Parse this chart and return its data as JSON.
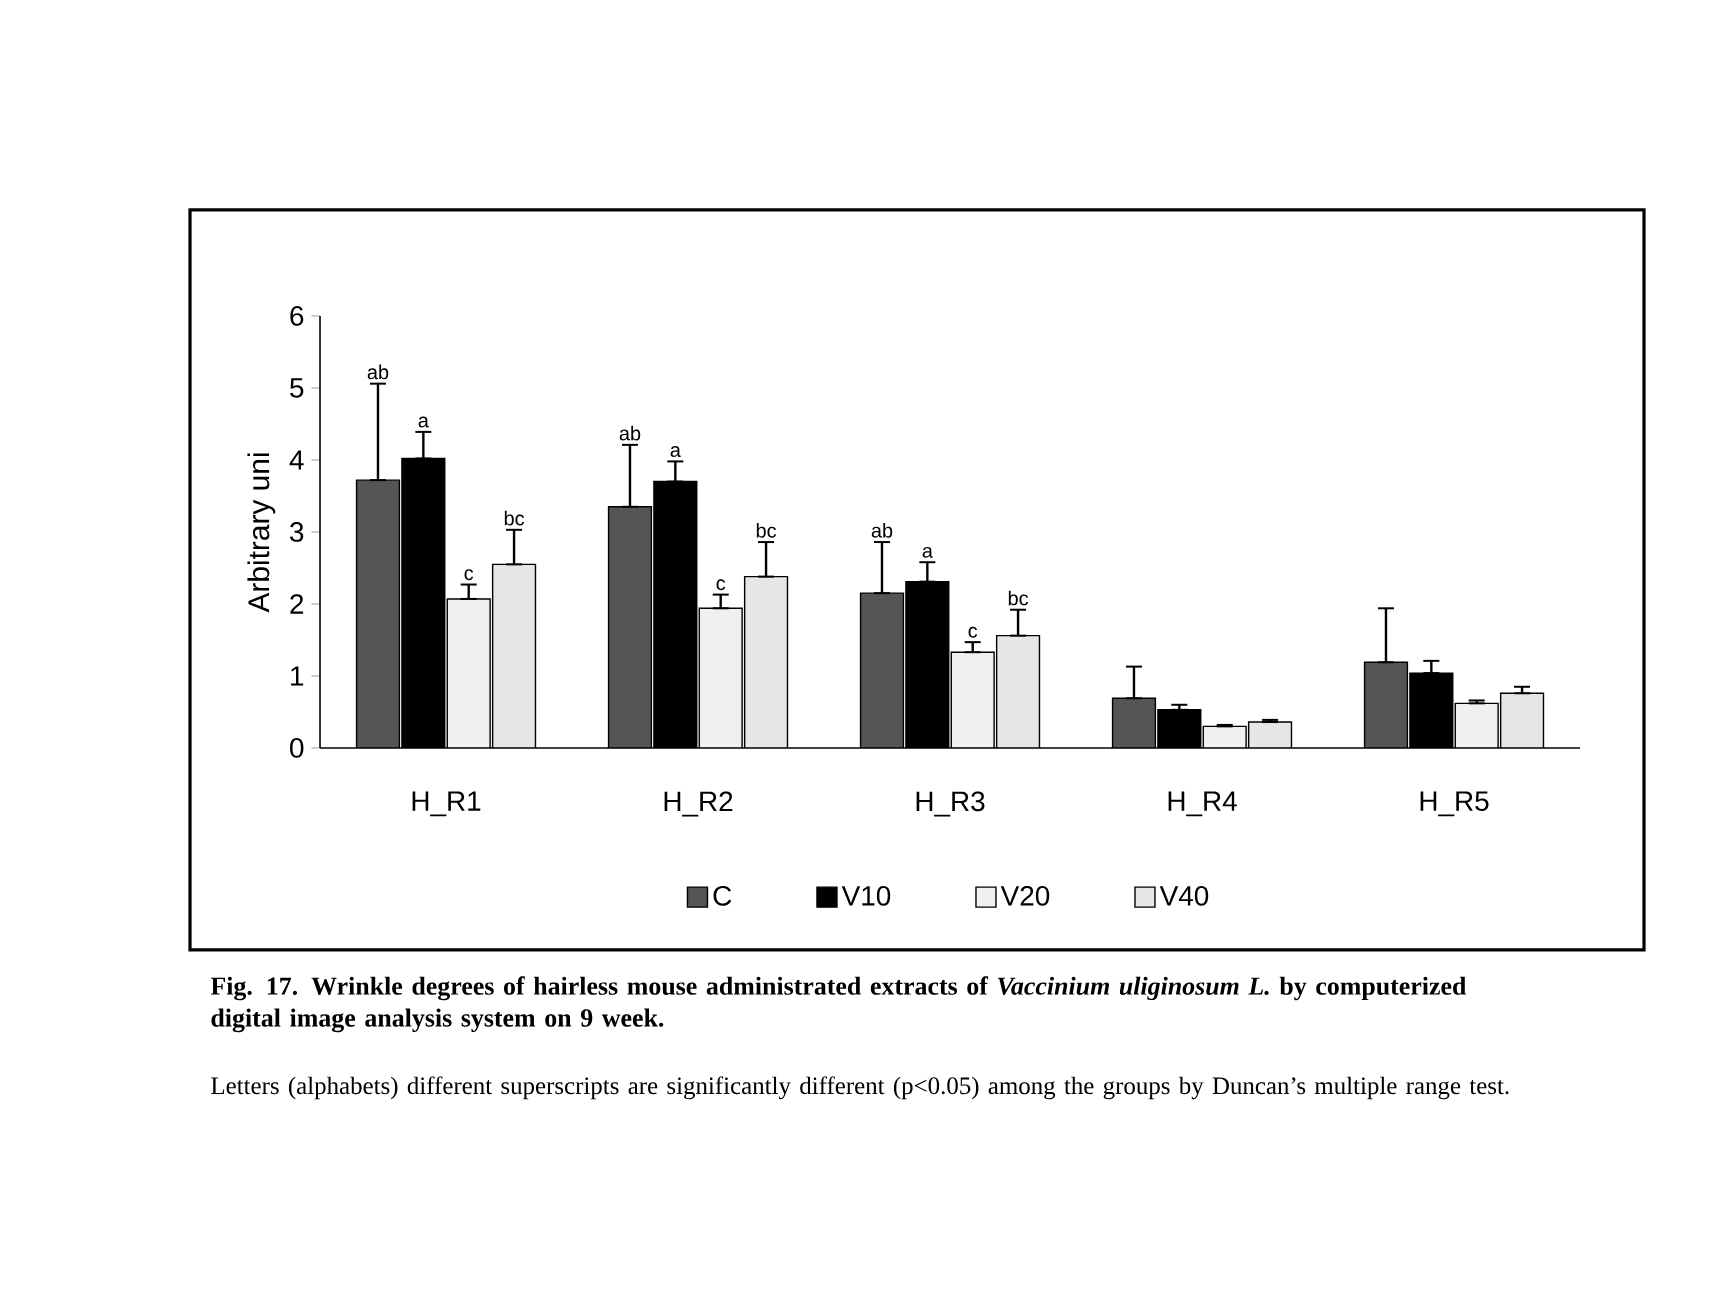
{
  "chart_data": {
    "type": "bar",
    "title": "Fig. 17. Wrinkle degrees of hairless mouse administrated extracts of *Vaccinium uliginosum L.* by computerized digital image analysis system on 9 week.",
    "ylabel": "Arbitrary uni",
    "categories": [
      "H_R1",
      "H_R2",
      "H_R3",
      "H_R4",
      "H_R5"
    ],
    "series": [
      {
        "name": "C",
        "color": "#555555",
        "values": [
          3.72,
          3.35,
          2.15,
          0.69,
          1.19
        ],
        "errors": [
          [
            3.72,
            5.06
          ],
          [
            3.35,
            4.21
          ],
          [
            2.15,
            2.86
          ],
          [
            0.69,
            1.13
          ],
          [
            1.19,
            1.94
          ]
        ]
      },
      {
        "name": "V10",
        "color": "#000000",
        "values": [
          4.02,
          3.7,
          2.31,
          0.53,
          1.04
        ],
        "errors": [
          [
            4.02,
            4.39
          ],
          [
            3.7,
            3.98
          ],
          [
            2.31,
            2.58
          ],
          [
            0.53,
            0.6
          ],
          [
            1.04,
            1.21
          ]
        ]
      },
      {
        "name": "V20",
        "color": "#f0f0f0",
        "values": [
          2.07,
          1.94,
          1.33,
          0.3,
          0.62
        ],
        "errors": [
          [
            2.07,
            2.27
          ],
          [
            1.94,
            2.13
          ],
          [
            1.33,
            1.47
          ],
          [
            0.3,
            0.32
          ],
          [
            0.62,
            0.66
          ]
        ]
      },
      {
        "name": "V40",
        "color": "#e6e6e6",
        "values": [
          2.55,
          2.38,
          1.56,
          0.36,
          0.76
        ],
        "errors": [
          [
            2.55,
            3.03
          ],
          [
            2.38,
            2.86
          ],
          [
            1.56,
            1.92
          ],
          [
            0.36,
            0.39
          ],
          [
            0.76,
            0.85
          ]
        ]
      }
    ],
    "ylim": [
      0,
      6
    ],
    "yticks": [
      0,
      1,
      2,
      3,
      4,
      5,
      6
    ],
    "legend": "bottom",
    "annotations": [
      "ab",
      "a",
      "c",
      "bc",
      "ab",
      "a",
      "c",
      "bc",
      "ab",
      "a",
      "c",
      "bc",
      "Letters (alphabets) different superscripts are significantly different (p<0.05) among the groups by Duncan’s multiple range test."
    ]
  }
}
